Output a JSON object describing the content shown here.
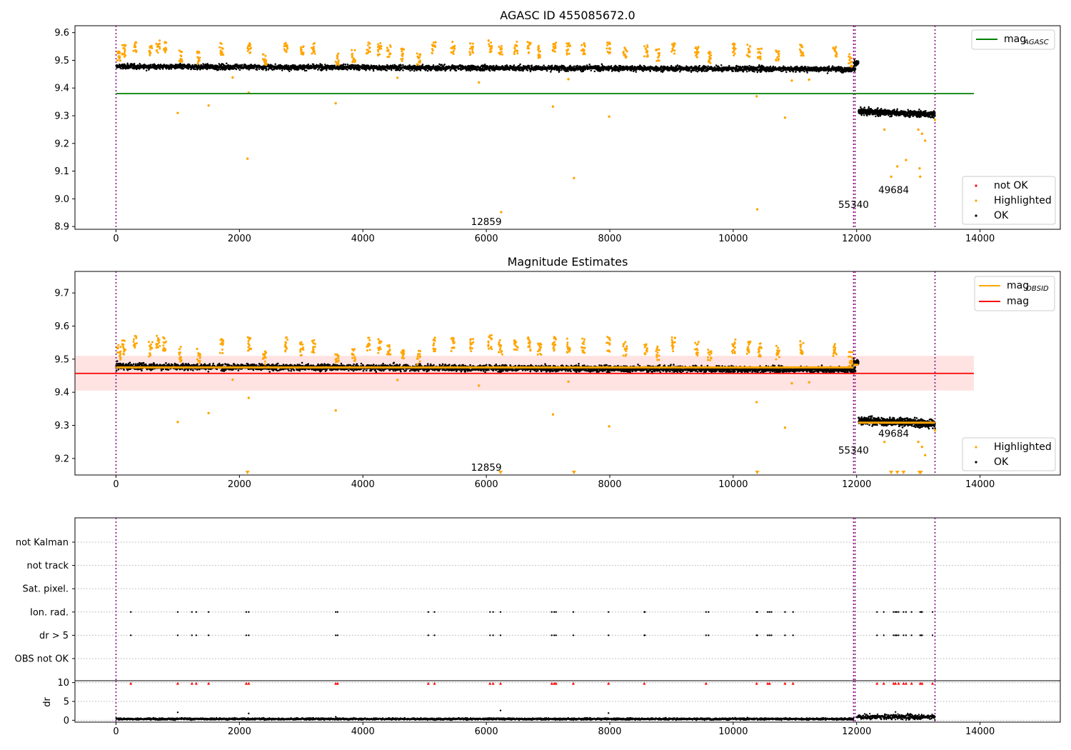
{
  "figure": {
    "panels": [
      {
        "title": "AGASC ID 455085672.0",
        "legend_lines": [
          {
            "label": "mag",
            "sub": "AGASC",
            "color": "#008000"
          }
        ],
        "legend_points": [
          {
            "label": "not OK",
            "color": "#ff0000"
          },
          {
            "label": "Highlighted",
            "color": "#ffa500"
          },
          {
            "label": "OK",
            "color": "#000000"
          }
        ]
      },
      {
        "title": "Magnitude Estimates",
        "legend_lines": [
          {
            "label": "mag",
            "sub": "OBSID",
            "color": "#ffa500"
          },
          {
            "label": "mag",
            "sub": "",
            "color": "#ff0000"
          }
        ],
        "legend_points": [
          {
            "label": "Highlighted",
            "color": "#ffa500"
          },
          {
            "label": "OK",
            "color": "#000000"
          }
        ]
      },
      {
        "title": "",
        "flag_labels": [
          "not Kalman",
          "not track",
          "Sat. pixel.",
          "Ion. rad.",
          "dr > 5",
          "OBS not OK"
        ],
        "dr_ylabel": "dr"
      }
    ]
  },
  "chart_data": [
    {
      "type": "scatter",
      "title": "AGASC ID 455085672.0",
      "xlabel": "",
      "ylabel": "",
      "xlim": [
        -665,
        15300
      ],
      "ylim": [
        8.89,
        9.625
      ],
      "xticks": [
        0,
        2000,
        4000,
        6000,
        8000,
        10000,
        12000,
        14000
      ],
      "yticks": [
        8.9,
        9.0,
        9.1,
        9.2,
        9.3,
        9.4,
        9.5,
        9.6
      ],
      "ok_bands": [
        {
          "x": [
            0,
            11980
          ],
          "mean": [
            9.478,
            9.468
          ],
          "scatter": 0.012
        },
        {
          "x": [
            11950,
            12030
          ],
          "mean": [
            9.49,
            9.49
          ],
          "scatter": 0.012
        },
        {
          "x": [
            12030,
            13270
          ],
          "mean": [
            9.315,
            9.305
          ],
          "scatter": 0.015
        }
      ],
      "highlight_clusters": [
        [
          50,
          9.52
        ],
        [
          130,
          9.535
        ],
        [
          310,
          9.55
        ],
        [
          560,
          9.53
        ],
        [
          680,
          9.55
        ],
        [
          790,
          9.545
        ],
        [
          1050,
          9.515
        ],
        [
          1340,
          9.51
        ],
        [
          1710,
          9.54
        ],
        [
          2160,
          9.545
        ],
        [
          2410,
          9.505
        ],
        [
          2750,
          9.545
        ],
        [
          3010,
          9.53
        ],
        [
          3200,
          9.54
        ],
        [
          3580,
          9.505
        ],
        [
          3850,
          9.515
        ],
        [
          4090,
          9.545
        ],
        [
          4270,
          9.54
        ],
        [
          4420,
          9.535
        ],
        [
          4650,
          9.52
        ],
        [
          4900,
          9.505
        ],
        [
          5150,
          9.545
        ],
        [
          5460,
          9.545
        ],
        [
          5760,
          9.54
        ],
        [
          6060,
          9.55
        ],
        [
          6230,
          9.535
        ],
        [
          6480,
          9.545
        ],
        [
          6690,
          9.545
        ],
        [
          6860,
          9.53
        ],
        [
          7100,
          9.545
        ],
        [
          7330,
          9.54
        ],
        [
          7570,
          9.54
        ],
        [
          7980,
          9.545
        ],
        [
          8250,
          9.53
        ],
        [
          8590,
          9.535
        ],
        [
          8780,
          9.52
        ],
        [
          9030,
          9.545
        ],
        [
          9410,
          9.53
        ],
        [
          9620,
          9.51
        ],
        [
          10010,
          9.54
        ],
        [
          10250,
          9.535
        ],
        [
          10430,
          9.525
        ],
        [
          10720,
          9.52
        ],
        [
          11110,
          9.535
        ],
        [
          11650,
          9.53
        ],
        [
          11900,
          9.5
        ]
      ],
      "highlight_outliers": [
        [
          1000,
          9.31
        ],
        [
          1500,
          9.337
        ],
        [
          2130,
          9.145
        ],
        [
          2150,
          9.383
        ],
        [
          1890,
          9.438
        ],
        [
          3560,
          9.345
        ],
        [
          4560,
          9.437
        ],
        [
          5880,
          9.42
        ],
        [
          6240,
          8.952
        ],
        [
          7080,
          9.333
        ],
        [
          7330,
          9.432
        ],
        [
          7420,
          9.075
        ],
        [
          7990,
          9.297
        ],
        [
          10380,
          9.37
        ],
        [
          10390,
          8.962
        ],
        [
          10840,
          9.293
        ],
        [
          10950,
          9.427
        ],
        [
          11230,
          9.43
        ],
        [
          12450,
          9.25
        ],
        [
          12560,
          9.08
        ],
        [
          12660,
          9.117
        ],
        [
          12800,
          9.14
        ],
        [
          13000,
          9.25
        ],
        [
          13020,
          9.11
        ],
        [
          13030,
          9.08
        ],
        [
          13060,
          9.235
        ],
        [
          13110,
          9.21
        ],
        [
          13270,
          9.285
        ]
      ],
      "lines": [
        {
          "name": "mag_AGASC",
          "y": 9.38,
          "x": [
            0,
            13900
          ],
          "color": "#008000"
        }
      ],
      "vlines": [
        0,
        11950,
        11975,
        13270
      ],
      "annotations": [
        {
          "x": 6000,
          "y": 8.905,
          "text": "12859"
        },
        {
          "x": 11950,
          "y": 8.968,
          "text": "55340"
        },
        {
          "x": 12600,
          "y": 9.02,
          "text": "49684"
        }
      ],
      "legend": "upper-right and lower-right"
    },
    {
      "type": "scatter",
      "title": "Magnitude Estimates",
      "xlabel": "",
      "ylabel": "",
      "xlim": [
        -665,
        15300
      ],
      "ylim": [
        9.15,
        9.765
      ],
      "xticks": [
        0,
        2000,
        4000,
        6000,
        8000,
        10000,
        12000,
        14000
      ],
      "yticks": [
        9.2,
        9.3,
        9.4,
        9.5,
        9.6,
        9.7
      ],
      "mag": 9.457,
      "mag_band": [
        9.405,
        9.51
      ],
      "mag_obsid_segments": [
        {
          "x": [
            0,
            11950
          ],
          "y": 9.475
        },
        {
          "x": [
            11950,
            12030
          ],
          "y": 9.483
        },
        {
          "x": [
            12030,
            13270
          ],
          "y": 9.308
        }
      ],
      "lower_limit_markers": [
        2130,
        6230,
        7420,
        10390,
        12560,
        12660,
        12760,
        13020,
        13040
      ],
      "annotations": [
        {
          "x": 6000,
          "y": 9.163,
          "text": "12859"
        },
        {
          "x": 11950,
          "y": 9.215,
          "text": "55340"
        },
        {
          "x": 12600,
          "y": 9.265,
          "text": "49684"
        }
      ],
      "legend": "upper-right and lower-right"
    },
    {
      "type": "scatter",
      "title": "",
      "ylabel": "dr",
      "xlim": [
        -665,
        15300
      ],
      "xticks": [
        0,
        2000,
        4000,
        6000,
        8000,
        10000,
        12000,
        14000
      ],
      "flag_categories": [
        "not Kalman",
        "not track",
        "Sat. pixel.",
        "Ion. rad.",
        "dr > 5",
        "OBS not OK"
      ],
      "flag_events_x": [
        240,
        1000,
        1230,
        1300,
        1500,
        2110,
        2150,
        3560,
        3590,
        5060,
        5160,
        6060,
        6110,
        6230,
        7060,
        7100,
        7130,
        7410,
        7980,
        8560,
        8570,
        9560,
        9600,
        10380,
        10390,
        10560,
        10590,
        10620,
        10840,
        10970,
        12330,
        12440,
        12600,
        12630,
        12650,
        12680,
        12760,
        12800,
        12890,
        13030,
        13050,
        13060,
        13230
      ],
      "dr_ylim": [
        -0.5,
        10.5
      ],
      "dr_yticks": [
        0,
        5,
        10
      ],
      "dr_baseline": [
        {
          "x": [
            0,
            11950
          ],
          "mean": 0.35
        },
        {
          "x": [
            12000,
            13270
          ],
          "mean": 0.9
        }
      ],
      "dr_outliers": [
        [
          1000,
          2.1
        ],
        [
          2150,
          1.8
        ],
        [
          3560,
          0.9
        ],
        [
          6230,
          2.6
        ],
        [
          7980,
          1.9
        ],
        [
          12630,
          2.2
        ]
      ],
      "dr_tenline_x": [
        240,
        1000,
        1230,
        1300,
        1500,
        2110,
        2150,
        3560,
        3590,
        5060,
        5160,
        6060,
        6110,
        6230,
        7060,
        7100,
        7130,
        7410,
        7980,
        8560,
        9560,
        10380,
        10560,
        10590,
        10840,
        10970,
        12330,
        12440,
        12600,
        12630,
        12680,
        12760,
        12800,
        12890,
        13030,
        13060,
        13230
      ]
    }
  ]
}
